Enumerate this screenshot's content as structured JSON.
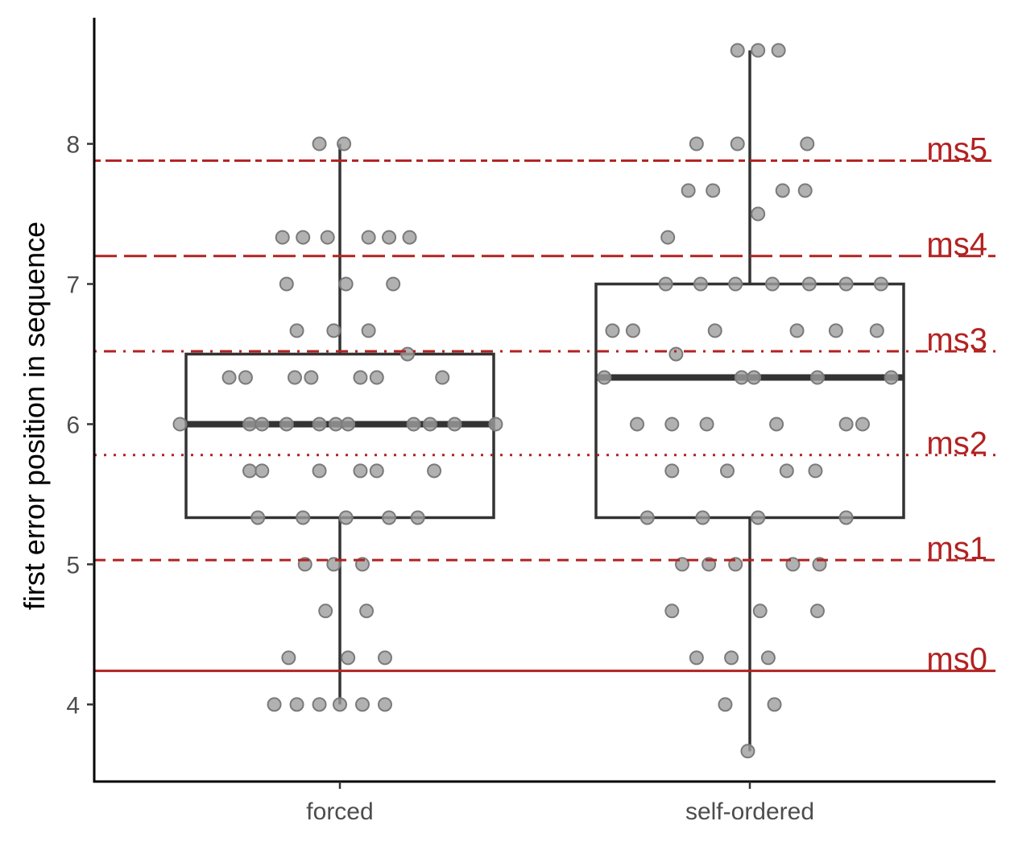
{
  "colors": {
    "reference": "#B22222",
    "box_stroke": "#333333",
    "point_fill": "#9e9e9e",
    "point_stroke": "#7a7a7a",
    "axis": "#000000"
  },
  "chart_data": {
    "type": "box",
    "title": "",
    "xlabel": "",
    "ylabel": "first error position in sequence",
    "ylim": [
      3.45,
      8.9
    ],
    "yticks": [
      4,
      5,
      6,
      7,
      8
    ],
    "categories": [
      "forced",
      "self-ordered"
    ],
    "grid": false,
    "boxes": [
      {
        "category": "forced",
        "q1": 5.333,
        "median": 6.0,
        "q3": 6.5,
        "whisker_low": 4.0,
        "whisker_high": 8.0,
        "points": [
          {
            "y": 8.0,
            "dx": -0.05
          },
          {
            "y": 8.0,
            "dx": 0.01
          },
          {
            "y": 7.333,
            "dx": -0.14
          },
          {
            "y": 7.333,
            "dx": -0.09
          },
          {
            "y": 7.333,
            "dx": -0.03
          },
          {
            "y": 7.333,
            "dx": 0.07
          },
          {
            "y": 7.333,
            "dx": 0.12
          },
          {
            "y": 7.333,
            "dx": 0.17
          },
          {
            "y": 7.0,
            "dx": -0.13
          },
          {
            "y": 7.0,
            "dx": 0.015
          },
          {
            "y": 7.0,
            "dx": 0.13
          },
          {
            "y": 6.667,
            "dx": -0.105
          },
          {
            "y": 6.667,
            "dx": -0.015
          },
          {
            "y": 6.667,
            "dx": 0.07
          },
          {
            "y": 6.5,
            "dx": 0.165
          },
          {
            "y": 6.333,
            "dx": -0.27
          },
          {
            "y": 6.333,
            "dx": -0.23
          },
          {
            "y": 6.333,
            "dx": -0.11
          },
          {
            "y": 6.333,
            "dx": -0.07
          },
          {
            "y": 6.333,
            "dx": 0.05
          },
          {
            "y": 6.333,
            "dx": 0.09
          },
          {
            "y": 6.333,
            "dx": 0.25
          },
          {
            "y": 6.0,
            "dx": -0.39
          },
          {
            "y": 6.0,
            "dx": -0.22
          },
          {
            "y": 6.0,
            "dx": -0.19
          },
          {
            "y": 6.0,
            "dx": -0.13
          },
          {
            "y": 6.0,
            "dx": -0.05
          },
          {
            "y": 6.0,
            "dx": -0.01
          },
          {
            "y": 6.0,
            "dx": 0.02
          },
          {
            "y": 6.0,
            "dx": 0.18
          },
          {
            "y": 6.0,
            "dx": 0.22
          },
          {
            "y": 6.0,
            "dx": 0.28
          },
          {
            "y": 6.0,
            "dx": 0.38
          },
          {
            "y": 5.667,
            "dx": -0.22
          },
          {
            "y": 5.667,
            "dx": -0.19
          },
          {
            "y": 5.667,
            "dx": -0.05
          },
          {
            "y": 5.667,
            "dx": 0.05
          },
          {
            "y": 5.667,
            "dx": 0.09
          },
          {
            "y": 5.667,
            "dx": 0.23
          },
          {
            "y": 5.333,
            "dx": -0.2
          },
          {
            "y": 5.333,
            "dx": -0.09
          },
          {
            "y": 5.333,
            "dx": 0.015
          },
          {
            "y": 5.333,
            "dx": 0.12
          },
          {
            "y": 5.333,
            "dx": 0.19
          },
          {
            "y": 5.0,
            "dx": -0.085
          },
          {
            "y": 5.0,
            "dx": -0.015
          },
          {
            "y": 5.0,
            "dx": 0.055
          },
          {
            "y": 4.667,
            "dx": -0.035
          },
          {
            "y": 4.667,
            "dx": 0.065
          },
          {
            "y": 4.333,
            "dx": -0.125
          },
          {
            "y": 4.333,
            "dx": 0.02
          },
          {
            "y": 4.333,
            "dx": 0.11
          },
          {
            "y": 4.0,
            "dx": -0.16
          },
          {
            "y": 4.0,
            "dx": -0.105
          },
          {
            "y": 4.0,
            "dx": -0.05
          },
          {
            "y": 4.0,
            "dx": 0.0
          },
          {
            "y": 4.0,
            "dx": 0.055
          },
          {
            "y": 4.0,
            "dx": 0.11
          }
        ]
      },
      {
        "category": "self-ordered",
        "q1": 5.333,
        "median": 6.333,
        "q3": 7.0,
        "whisker_low": 3.667,
        "whisker_high": 8.667,
        "points": [
          {
            "y": 8.667,
            "dx": -0.03
          },
          {
            "y": 8.667,
            "dx": 0.02
          },
          {
            "y": 8.667,
            "dx": 0.07
          },
          {
            "y": 8.0,
            "dx": -0.13
          },
          {
            "y": 8.0,
            "dx": -0.03
          },
          {
            "y": 8.0,
            "dx": 0.14
          },
          {
            "y": 7.667,
            "dx": -0.15
          },
          {
            "y": 7.667,
            "dx": -0.09
          },
          {
            "y": 7.667,
            "dx": 0.08
          },
          {
            "y": 7.667,
            "dx": 0.135
          },
          {
            "y": 7.5,
            "dx": 0.02
          },
          {
            "y": 7.333,
            "dx": -0.2
          },
          {
            "y": 7.0,
            "dx": -0.205
          },
          {
            "y": 7.0,
            "dx": -0.12
          },
          {
            "y": 7.0,
            "dx": -0.035
          },
          {
            "y": 7.0,
            "dx": 0.055
          },
          {
            "y": 7.0,
            "dx": 0.145
          },
          {
            "y": 7.0,
            "dx": 0.235
          },
          {
            "y": 7.0,
            "dx": 0.32
          },
          {
            "y": 6.667,
            "dx": -0.335
          },
          {
            "y": 6.667,
            "dx": -0.285
          },
          {
            "y": 6.667,
            "dx": -0.085
          },
          {
            "y": 6.667,
            "dx": 0.115
          },
          {
            "y": 6.667,
            "dx": 0.21
          },
          {
            "y": 6.667,
            "dx": 0.31
          },
          {
            "y": 6.5,
            "dx": -0.18
          },
          {
            "y": 6.333,
            "dx": -0.355
          },
          {
            "y": 6.333,
            "dx": -0.02
          },
          {
            "y": 6.333,
            "dx": 0.01
          },
          {
            "y": 6.333,
            "dx": 0.165
          },
          {
            "y": 6.333,
            "dx": 0.345
          },
          {
            "y": 6.0,
            "dx": -0.275
          },
          {
            "y": 6.0,
            "dx": -0.19
          },
          {
            "y": 6.0,
            "dx": -0.105
          },
          {
            "y": 6.0,
            "dx": 0.065
          },
          {
            "y": 6.0,
            "dx": 0.235
          },
          {
            "y": 6.0,
            "dx": 0.275
          },
          {
            "y": 5.667,
            "dx": -0.19
          },
          {
            "y": 5.667,
            "dx": -0.055
          },
          {
            "y": 5.667,
            "dx": 0.09
          },
          {
            "y": 5.667,
            "dx": 0.16
          },
          {
            "y": 5.333,
            "dx": -0.25
          },
          {
            "y": 5.333,
            "dx": -0.115
          },
          {
            "y": 5.333,
            "dx": 0.02
          },
          {
            "y": 5.333,
            "dx": 0.235
          },
          {
            "y": 5.0,
            "dx": -0.165
          },
          {
            "y": 5.0,
            "dx": -0.1
          },
          {
            "y": 5.0,
            "dx": -0.035
          },
          {
            "y": 5.0,
            "dx": 0.105
          },
          {
            "y": 5.0,
            "dx": 0.17
          },
          {
            "y": 4.667,
            "dx": -0.19
          },
          {
            "y": 4.667,
            "dx": 0.025
          },
          {
            "y": 4.667,
            "dx": 0.165
          },
          {
            "y": 4.333,
            "dx": -0.13
          },
          {
            "y": 4.333,
            "dx": -0.045
          },
          {
            "y": 4.333,
            "dx": 0.045
          },
          {
            "y": 4.0,
            "dx": -0.06
          },
          {
            "y": 4.0,
            "dx": 0.06
          },
          {
            "y": 3.667,
            "dx": -0.005
          }
        ]
      }
    ],
    "reference_lines": [
      {
        "label": "ms0",
        "y": 4.24,
        "style": "solid"
      },
      {
        "label": "ms1",
        "y": 5.03,
        "style": "dashed"
      },
      {
        "label": "ms2",
        "y": 5.78,
        "style": "dotted"
      },
      {
        "label": "ms3",
        "y": 6.52,
        "style": "dotdash"
      },
      {
        "label": "ms4",
        "y": 7.2,
        "style": "longdash"
      },
      {
        "label": "ms5",
        "y": 7.88,
        "style": "twodash"
      }
    ]
  }
}
